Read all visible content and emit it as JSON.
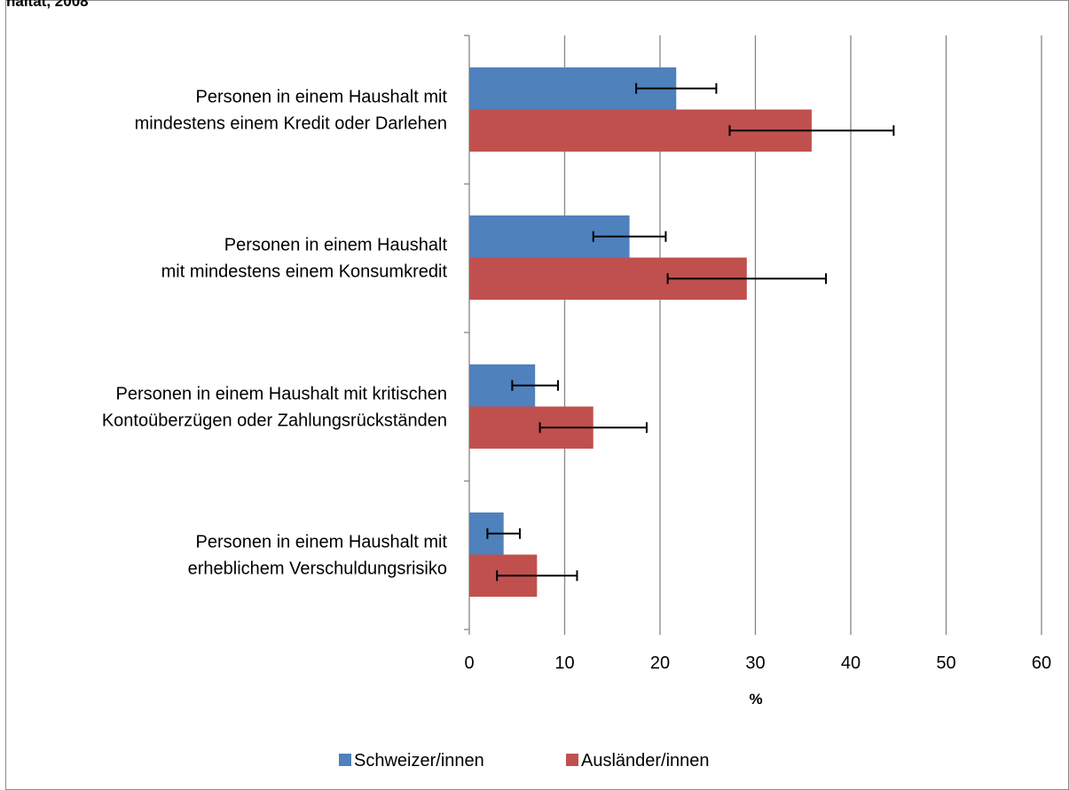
{
  "page": {
    "title_fragment": "haltat, 2008"
  },
  "colors": {
    "schweizer": "#4f81bd",
    "auslaender": "#c0504d",
    "grid": "#868686",
    "errorbar": "#000000"
  },
  "chart_data": {
    "type": "bar",
    "orientation": "horizontal",
    "categories": [
      [
        "Personen in einem Haushalt mit",
        "mindestens einem Kredit oder Darlehen"
      ],
      [
        "Personen in einem Haushalt",
        "mit mindestens einem Konsumkredit"
      ],
      [
        "Personen in einem Haushalt mit kritischen",
        "Kontoüberzügen oder Zahlungsrückständen"
      ],
      [
        "Personen in einem Haushalt mit",
        "erheblichem Verschuldungsrisiko"
      ]
    ],
    "series": [
      {
        "name": "Schweizer/innen",
        "values": [
          21.7,
          16.8,
          6.9,
          3.6
        ],
        "error_low": [
          17.5,
          13.0,
          4.5,
          1.9
        ],
        "error_high": [
          25.9,
          20.6,
          9.3,
          5.3
        ]
      },
      {
        "name": "Ausländer/innen",
        "values": [
          35.9,
          29.1,
          13.0,
          7.1
        ],
        "error_low": [
          27.3,
          20.8,
          7.4,
          2.9
        ],
        "error_high": [
          44.5,
          37.4,
          18.6,
          11.3
        ]
      }
    ],
    "xlabel": "%",
    "xlim": [
      0,
      60
    ],
    "xticks": [
      0,
      10,
      20,
      30,
      40,
      50,
      60
    ],
    "grid": "vertical",
    "legend_position": "bottom"
  }
}
